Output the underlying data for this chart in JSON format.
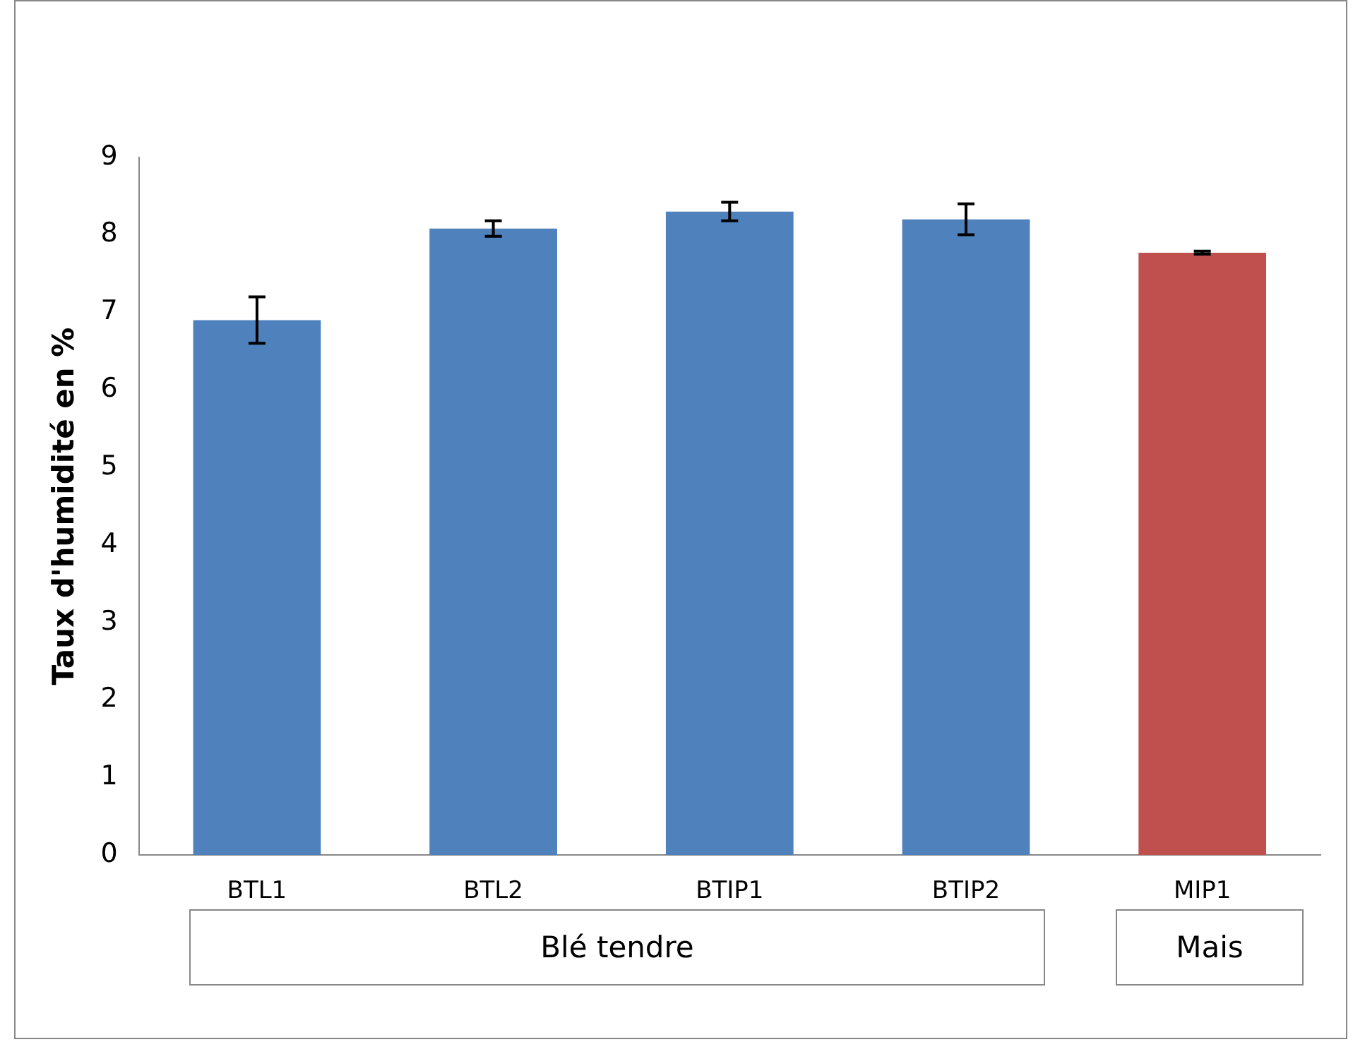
{
  "chart_data": {
    "type": "bar",
    "ylabel": "Taux d'humidité en %",
    "categories": [
      "BTL1",
      "BTL2",
      "BTIP1",
      "BTIP2",
      "MIP1"
    ],
    "values": [
      6.9,
      8.08,
      8.3,
      8.2,
      7.77
    ],
    "colors": [
      "#4f81bd",
      "#4f81bd",
      "#4f81bd",
      "#4f81bd",
      "#c0504d"
    ],
    "errors": [
      0.3,
      0.1,
      0.12,
      0.2,
      0.02
    ],
    "ylim": [
      0,
      9
    ],
    "yticks": [
      0,
      1,
      2,
      3,
      4,
      5,
      6,
      7,
      8,
      9
    ],
    "grid": false,
    "legend": false,
    "annotations": [
      "Blé tendre",
      "Mais"
    ]
  }
}
